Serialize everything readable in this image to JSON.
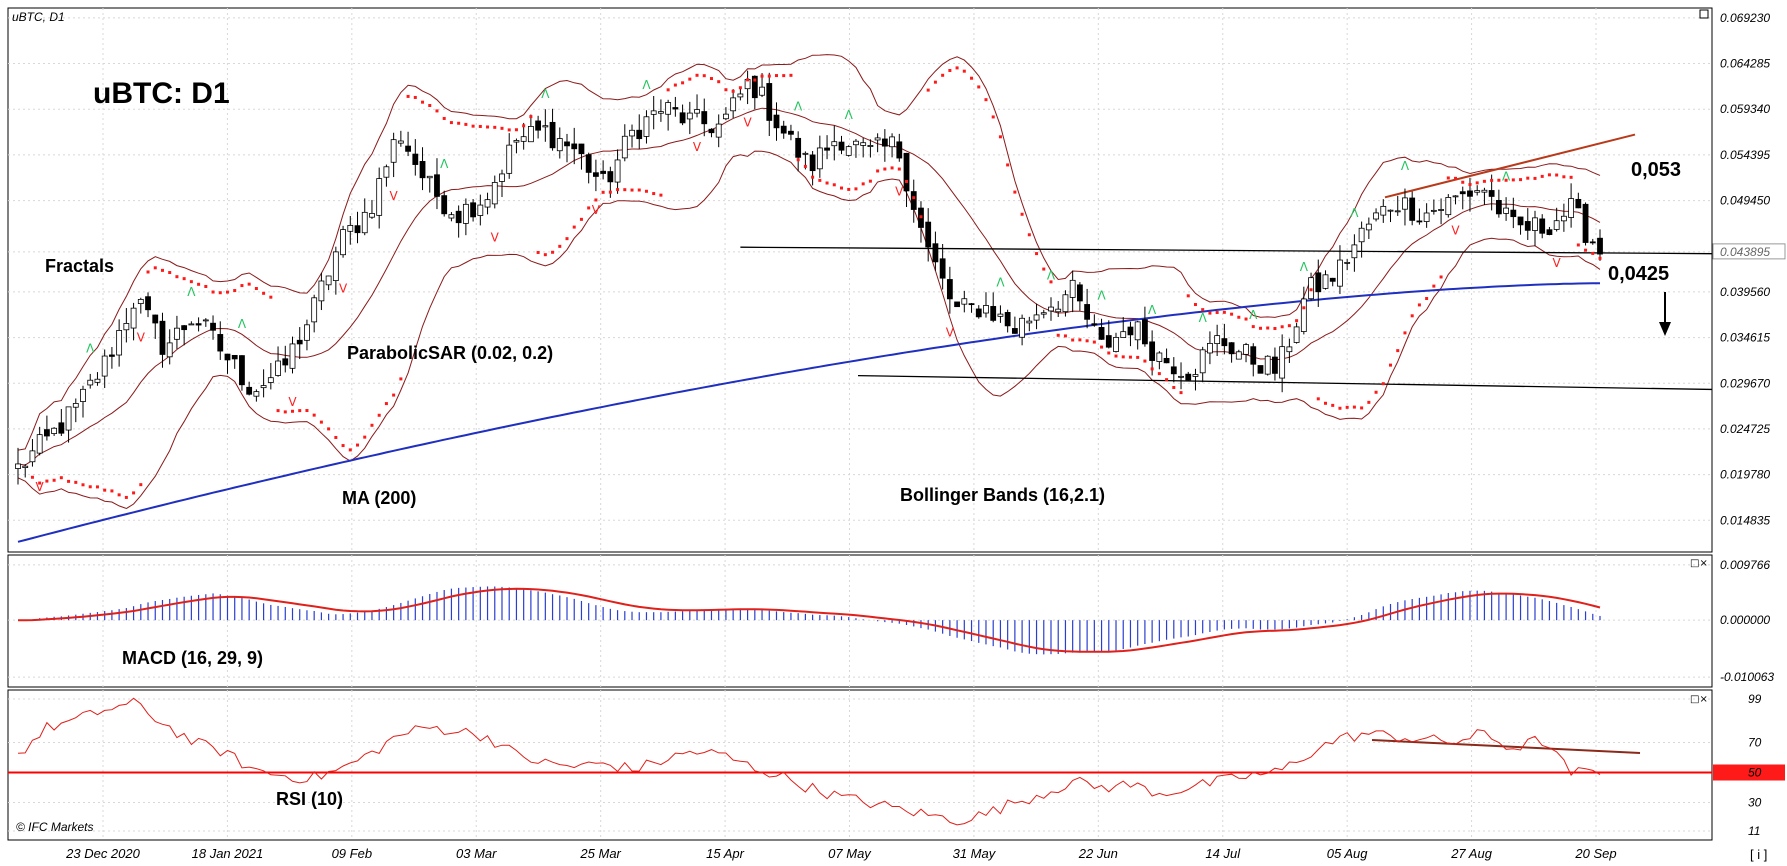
{
  "window_title": "uBTC, D1",
  "big_title": "uBTC: D1",
  "labels": {
    "fractals": "Fractals",
    "psar": "ParabolicSAR (0.02, 0.2)",
    "ma": "MA (200)",
    "bollinger": "Bollinger Bands (16,2.1)",
    "macd": "MACD (16, 29, 9)",
    "rsi": "RSI (10)",
    "copyright": "© IFC Markets",
    "level_high": "0,053",
    "level_low": "0,0425",
    "corner_tag": "[ i ]"
  },
  "colors": {
    "candle_up": "#ffffff",
    "candle_down": "#000000",
    "bollinger": "#8b1a1a",
    "ma": "#1f2fbf",
    "psar": "#ff1a1a",
    "fractal_up": "#22c55e",
    "fractal_down": "#ff2020",
    "macd_hist": "#2a3fd0",
    "macd_signal": "#e0201a",
    "rsi_line": "#e0201a",
    "rsi_mid": "#ff0000",
    "trend_line": "#b83a1a",
    "level_badge": "#ff1a1a"
  },
  "chart_data": [
    {
      "type": "candlestick",
      "title": "uBTC, D1",
      "y_ticks": [
        "0.069230",
        "0.064285",
        "0.059340",
        "0.054395",
        "0.049450",
        "0.043895",
        "0.039560",
        "0.034615",
        "0.029670",
        "0.024725",
        "0.019780",
        "0.014835"
      ],
      "current_price": "0.043895",
      "ylim": [
        0.0114,
        0.0703
      ],
      "x_ticks": [
        "23 Dec 2020",
        "18 Jan 2021",
        "09 Feb",
        "03 Mar",
        "25 Mar",
        "15 Apr",
        "07 May",
        "31 May",
        "22 Jun",
        "14 Jul",
        "05 Aug",
        "27 Aug",
        "20 Sep"
      ],
      "close_path": [
        0.0205,
        0.0235,
        0.027,
        0.032,
        0.039,
        0.0335,
        0.037,
        0.033,
        0.029,
        0.031,
        0.037,
        0.045,
        0.0485,
        0.057,
        0.051,
        0.048,
        0.05,
        0.056,
        0.057,
        0.055,
        0.051,
        0.057,
        0.0595,
        0.058,
        0.0575,
        0.0625,
        0.0575,
        0.053,
        0.0565,
        0.0545,
        0.0555,
        0.0445,
        0.0375,
        0.038,
        0.0355,
        0.038,
        0.0395,
        0.0335,
        0.036,
        0.0325,
        0.031,
        0.0345,
        0.0325,
        0.031,
        0.0395,
        0.0415,
        0.0465,
        0.0495,
        0.048,
        0.0495,
        0.051,
        0.0465,
        0.0465,
        0.0485,
        0.044
      ],
      "levels": [
        {
          "label": "0,053",
          "value": 0.053
        },
        {
          "label": "0,0425",
          "value": 0.0425
        }
      ],
      "indicators": [
        "Fractals",
        "ParabolicSAR (0.02, 0.2)",
        "MA (200)",
        "Bollinger Bands (16,2.1)"
      ]
    },
    {
      "type": "bar",
      "title": "MACD (16, 29, 9)",
      "y_ticks": [
        "0.009766",
        "0.000000",
        "-0.010063"
      ],
      "ylim": [
        -0.0118,
        0.0115
      ]
    },
    {
      "type": "line",
      "title": "RSI (10)",
      "y_ticks": [
        "99",
        "70",
        "50",
        "30",
        "11"
      ],
      "ylim": [
        5,
        105
      ],
      "midline": 50,
      "path": [
        62,
        80,
        85,
        92,
        96,
        82,
        70,
        64,
        52,
        48,
        46,
        52,
        62,
        75,
        80,
        78,
        74,
        62,
        56,
        54,
        56,
        52,
        58,
        64,
        62,
        54,
        48,
        40,
        34,
        30,
        26,
        22,
        18,
        22,
        30,
        36,
        44,
        40,
        42,
        36,
        40,
        44,
        48,
        50,
        62,
        72,
        76,
        74,
        72,
        70,
        76,
        66,
        72,
        50,
        50
      ]
    }
  ]
}
